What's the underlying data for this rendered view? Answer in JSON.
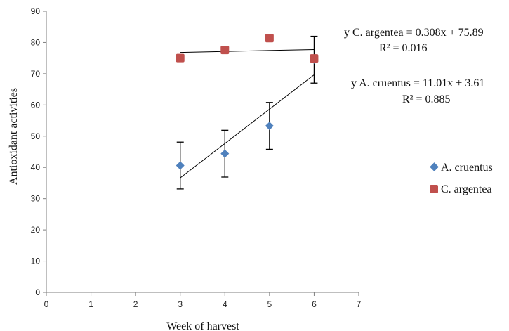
{
  "chart_data": {
    "type": "scatter",
    "xlabel": "Week of harvest",
    "ylabel": "Antioxidant activities",
    "xlim": [
      0,
      7
    ],
    "ylim": [
      0,
      90
    ],
    "x_ticks": [
      "0",
      "1",
      "2",
      "3",
      "4",
      "5",
      "6",
      "7"
    ],
    "y_ticks": [
      "0",
      "10",
      "20",
      "30",
      "40",
      "50",
      "60",
      "70",
      "80",
      "90"
    ],
    "grid": false,
    "legend_position": "right",
    "series": [
      {
        "name": "A. cruentus",
        "color": "#4F81BD",
        "marker": "diamond",
        "x": [
          3,
          4,
          5,
          6
        ],
        "y": [
          40.6,
          44.4,
          53.3,
          74.5
        ],
        "error": [
          7.5,
          7.5,
          7.5,
          7.5
        ],
        "trendline": {
          "slope": 11.01,
          "intercept": 3.61
        }
      },
      {
        "name": "C. argentea",
        "color": "#C0504D",
        "marker": "square",
        "x": [
          3,
          4,
          5,
          6
        ],
        "y": [
          75.0,
          77.6,
          81.4,
          74.9
        ],
        "error": [
          1.0,
          1.0,
          1.0,
          1.0
        ],
        "trendline": {
          "slope": 0.308,
          "intercept": 75.89
        }
      }
    ],
    "annotations": [
      {
        "line1": "y  C. argentea = 0.308x + 75.89",
        "line2": "R² = 0.016"
      },
      {
        "line1": "y  A. cruentus = 11.01x + 3.61",
        "line2": "R² = 0.885"
      }
    ]
  }
}
